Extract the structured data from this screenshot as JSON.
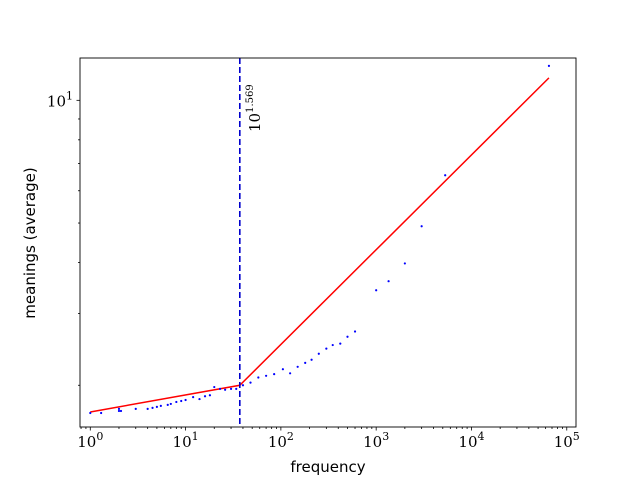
{
  "chart_data": {
    "type": "scatter",
    "title": "",
    "xlabel": "frequency",
    "ylabel": "meanings (average)",
    "xscale": "log",
    "yscale": "log",
    "xlim": [
      0.78,
      125000
    ],
    "ylim": [
      1.58,
      12.7
    ],
    "grid": false,
    "legend": "none",
    "x_ticks": [
      {
        "base": "10",
        "exp": "0",
        "value": 1
      },
      {
        "base": "10",
        "exp": "1",
        "value": 10
      },
      {
        "base": "10",
        "exp": "2",
        "value": 100
      },
      {
        "base": "10",
        "exp": "3",
        "value": 1000
      },
      {
        "base": "10",
        "exp": "4",
        "value": 10000
      },
      {
        "base": "10",
        "exp": "5",
        "value": 100000
      }
    ],
    "y_ticks": [
      {
        "base": "10",
        "exp": "1",
        "value": 10
      }
    ],
    "threshold": {
      "x": 37.07,
      "label_base": "10",
      "label_exp": "1.569",
      "color": "#0000cc"
    },
    "fit": {
      "color": "#ff0000",
      "points": [
        [
          1,
          1.72
        ],
        [
          37.07,
          2.0
        ],
        [
          65000,
          11.35
        ]
      ]
    },
    "series": [
      {
        "color": "#0000ff",
        "x": [
          1,
          1.3,
          2,
          2,
          2.1,
          3,
          4,
          4.5,
          5,
          5.5,
          6.5,
          7,
          8,
          9,
          10,
          12,
          14,
          16,
          18,
          20,
          23,
          26,
          30,
          34,
          40,
          48,
          58,
          70,
          85,
          105,
          125,
          150,
          180,
          210,
          250,
          300,
          350,
          420,
          500,
          600,
          1000,
          1350,
          2000,
          3000,
          5300,
          65000
        ],
        "y": [
          1.71,
          1.71,
          1.75,
          1.73,
          1.73,
          1.75,
          1.75,
          1.76,
          1.77,
          1.78,
          1.79,
          1.8,
          1.82,
          1.83,
          1.84,
          1.87,
          1.85,
          1.88,
          1.89,
          1.98,
          1.96,
          1.95,
          1.96,
          1.96,
          2.0,
          2.03,
          2.09,
          2.11,
          2.13,
          2.19,
          2.14,
          2.22,
          2.27,
          2.31,
          2.39,
          2.46,
          2.51,
          2.53,
          2.63,
          2.71,
          3.42,
          3.6,
          3.98,
          4.91,
          6.55,
          12.15
        ]
      }
    ]
  }
}
